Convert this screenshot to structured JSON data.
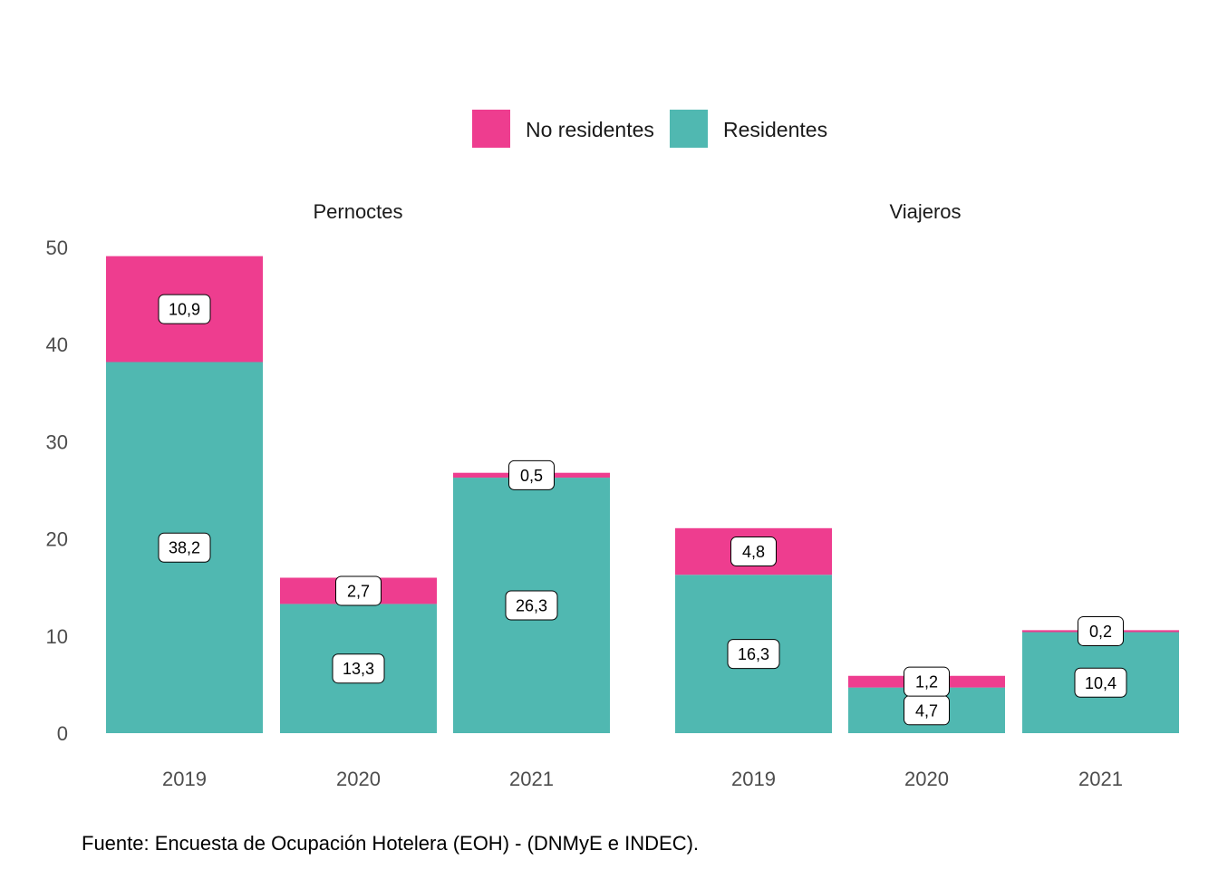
{
  "chart_data": {
    "type": "bar",
    "stacked": true,
    "legend": {
      "placement": "top",
      "items": [
        {
          "name": "No residentes",
          "color": "#EE3D8F"
        },
        {
          "name": "Residentes",
          "color": "#50B8B1"
        }
      ]
    },
    "ylim": [
      0,
      50
    ],
    "yticks": [
      "0",
      "10",
      "20",
      "30",
      "40",
      "50"
    ],
    "ytick_values": [
      0,
      10,
      20,
      30,
      40,
      50
    ],
    "grid": false,
    "facets": [
      {
        "title": "Pernoctes",
        "categories": [
          "2019",
          "2020",
          "2021"
        ],
        "series": [
          {
            "name": "Residentes",
            "values": [
              38.2,
              13.3,
              26.3
            ],
            "labels": [
              "38,2",
              "13,3",
              "26,3"
            ]
          },
          {
            "name": "No residentes",
            "values": [
              10.9,
              2.7,
              0.5
            ],
            "labels": [
              "10,9",
              "2,7",
              "0,5"
            ]
          }
        ]
      },
      {
        "title": "Viajeros",
        "categories": [
          "2019",
          "2020",
          "2021"
        ],
        "series": [
          {
            "name": "Residentes",
            "values": [
              16.3,
              4.7,
              10.4
            ],
            "labels": [
              "16,3",
              "4,7",
              "10,4"
            ]
          },
          {
            "name": "No residentes",
            "values": [
              4.8,
              1.2,
              0.2
            ],
            "labels": [
              "4,8",
              "1,2",
              "0,2"
            ]
          }
        ]
      }
    ],
    "caption": "Fuente: Encuesta de Ocupación Hotelera (EOH) - (DNMyE e INDEC)."
  }
}
